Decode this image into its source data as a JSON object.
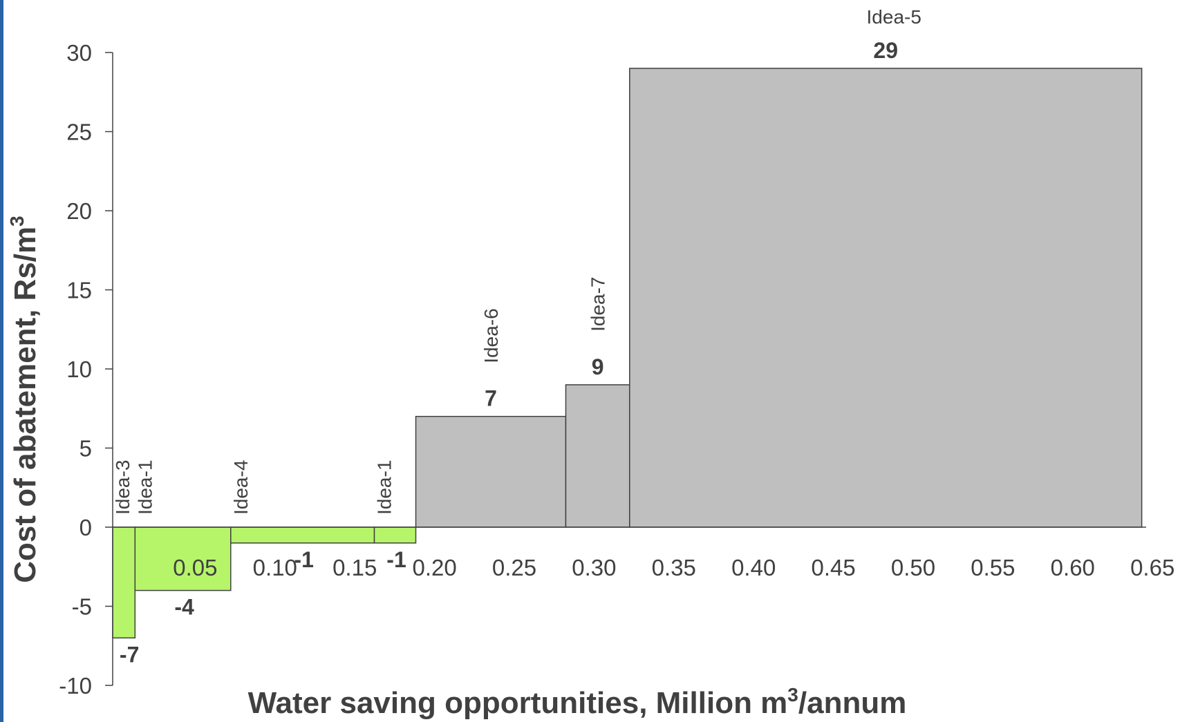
{
  "chart_data": {
    "type": "bar",
    "subtype": "variable-width abatement cost curve",
    "xlabel": "Water saving opportunities, Million m",
    "xlabel_sup": "3",
    "xlabel_suffix": "/annum",
    "ylabel": "Cost of abatement, Rs/m",
    "ylabel_sup": "3",
    "xlim": [
      0,
      0.65
    ],
    "ylim": [
      -10,
      30
    ],
    "x_ticks": [
      "0.05",
      "0.10",
      "0.15",
      "0.20",
      "0.25",
      "0.30",
      "0.35",
      "0.40",
      "0.45",
      "0.50",
      "0.55",
      "0.60",
      "0.65"
    ],
    "x_tick_values": [
      0.05,
      0.1,
      0.15,
      0.2,
      0.25,
      0.3,
      0.35,
      0.4,
      0.45,
      0.5,
      0.55,
      0.6,
      0.65
    ],
    "y_ticks": [
      "-10",
      "-5",
      "0",
      "5",
      "10",
      "15",
      "20",
      "25",
      "30"
    ],
    "y_tick_values": [
      -10,
      -5,
      0,
      5,
      10,
      15,
      20,
      25,
      30
    ],
    "grid": false,
    "colors": {
      "negative": "#b6f56a",
      "positive": "#bfbfbf",
      "edge": "#404040",
      "text": "#404040"
    },
    "bars": [
      {
        "name": "Idea-3",
        "x_start": 0.0,
        "x_end": 0.014,
        "value": -7,
        "value_label": "-7",
        "name_orientation": "vertical"
      },
      {
        "name": "Idea-1",
        "x_start": 0.014,
        "x_end": 0.074,
        "value": -4,
        "value_label": "-4",
        "name_orientation": "vertical"
      },
      {
        "name": "Idea-4",
        "x_start": 0.074,
        "x_end": 0.164,
        "value": -1,
        "value_label": "-1",
        "name_orientation": "vertical"
      },
      {
        "name": "Idea-1",
        "x_start": 0.164,
        "x_end": 0.19,
        "value": -1,
        "value_label": "-1",
        "name_orientation": "vertical"
      },
      {
        "name": "Idea-6",
        "x_start": 0.19,
        "x_end": 0.284,
        "value": 7,
        "value_label": "7",
        "name_orientation": "vertical"
      },
      {
        "name": "Idea-7",
        "x_start": 0.284,
        "x_end": 0.324,
        "value": 9,
        "value_label": "9",
        "name_orientation": "vertical"
      },
      {
        "name": "Idea-5",
        "x_start": 0.324,
        "x_end": 0.645,
        "value": 29,
        "value_label": "29",
        "name_orientation": "horizontal"
      }
    ]
  }
}
